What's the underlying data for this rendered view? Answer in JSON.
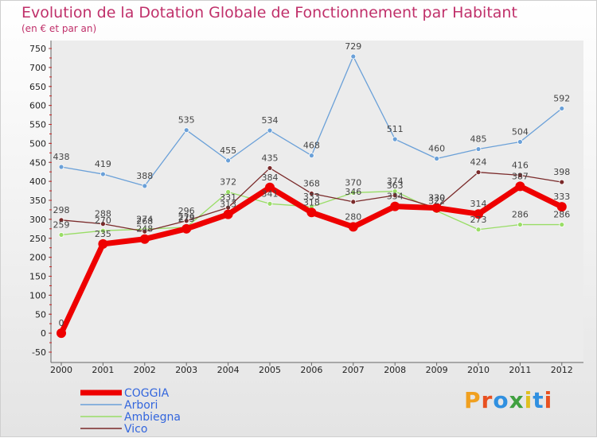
{
  "title": "Evolution de la Dotation Globale de Fonctionnement par Habitant",
  "subtitle": "(en € et par an)",
  "logo_text": "Proxiti",
  "chart_data": {
    "type": "line",
    "categories": [
      "2000",
      "2001",
      "2002",
      "2003",
      "2004",
      "2005",
      "2006",
      "2007",
      "2008",
      "2009",
      "2010",
      "2011",
      "2012"
    ],
    "ylim": [
      -50,
      750
    ],
    "yticks": [
      -50,
      0,
      50,
      100,
      150,
      200,
      250,
      300,
      350,
      400,
      450,
      500,
      550,
      600,
      650,
      700,
      750
    ],
    "grid": false,
    "legend": "bottom-left",
    "series": [
      {
        "name": "COGGIA",
        "color": "#ee0000",
        "values": [
          0,
          235,
          248,
          275,
          313,
          384,
          318,
          280,
          334,
          330,
          314,
          387,
          333
        ]
      },
      {
        "name": "Arbori",
        "color": "#6aa0d8",
        "values": [
          438,
          419,
          388,
          535,
          455,
          534,
          468,
          729,
          511,
          460,
          485,
          504,
          592
        ]
      },
      {
        "name": "Ambiegna",
        "color": "#99dd66",
        "values": [
          259,
          270,
          274,
          279,
          372,
          341,
          333,
          370,
          374,
          322,
          273,
          286,
          286
        ]
      },
      {
        "name": "Vico",
        "color": "#7a2a2a",
        "values": [
          298,
          288,
          268,
          296,
          331,
          435,
          368,
          346,
          363,
          330,
          424,
          416,
          398
        ]
      }
    ]
  }
}
